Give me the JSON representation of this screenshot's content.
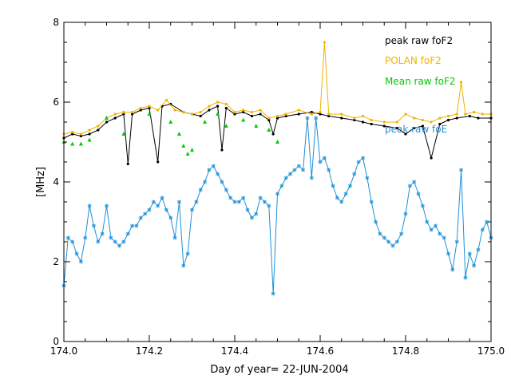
{
  "chart_data": {
    "type": "line",
    "title": "",
    "xlabel": "Day of year= 22-JUN-2004",
    "ylabel": "[MHz]",
    "xlim": [
      174.0,
      175.0
    ],
    "ylim": [
      0,
      8
    ],
    "grid": false,
    "legend_position": "top-right",
    "x_ticks": [
      174.0,
      174.2,
      174.4,
      174.6,
      174.8,
      175.0
    ],
    "x_tick_labels": [
      "174.0",
      "174.2",
      "174.4",
      "174.6",
      "174.8",
      "175.0"
    ],
    "y_ticks": [
      0,
      2,
      4,
      6,
      8
    ],
    "y_tick_labels": [
      "0",
      "2",
      "4",
      "6",
      "8"
    ],
    "series": [
      {
        "name": "peak raw foF2",
        "color": "#000000",
        "marker": "dot",
        "x": [
          174.0,
          174.02,
          174.04,
          174.06,
          174.08,
          174.1,
          174.12,
          174.14,
          174.15,
          174.16,
          174.18,
          174.2,
          174.22,
          174.23,
          174.25,
          174.28,
          174.3,
          174.32,
          174.34,
          174.36,
          174.37,
          174.38,
          174.4,
          174.42,
          174.44,
          174.46,
          174.48,
          174.49,
          174.5,
          174.52,
          174.55,
          174.58,
          174.6,
          174.62,
          174.65,
          174.68,
          174.7,
          174.72,
          174.75,
          174.78,
          174.8,
          174.82,
          174.84,
          174.86,
          174.88,
          174.9,
          174.92,
          174.95,
          174.97,
          175.0
        ],
        "y": [
          5.1,
          5.2,
          5.15,
          5.2,
          5.3,
          5.5,
          5.6,
          5.7,
          4.45,
          5.7,
          5.8,
          5.85,
          4.5,
          5.9,
          5.95,
          5.75,
          5.7,
          5.65,
          5.8,
          5.9,
          4.8,
          5.85,
          5.7,
          5.75,
          5.65,
          5.7,
          5.55,
          5.2,
          5.6,
          5.65,
          5.7,
          5.75,
          5.7,
          5.65,
          5.6,
          5.55,
          5.5,
          5.45,
          5.4,
          5.35,
          5.2,
          5.35,
          5.4,
          4.6,
          5.45,
          5.55,
          5.6,
          5.65,
          5.6,
          5.6
        ]
      },
      {
        "name": "POLAN foF2",
        "color": "#f0b400",
        "marker": "dot",
        "x": [
          174.0,
          174.02,
          174.04,
          174.06,
          174.08,
          174.1,
          174.12,
          174.14,
          174.16,
          174.18,
          174.2,
          174.22,
          174.24,
          174.26,
          174.28,
          174.3,
          174.32,
          174.34,
          174.36,
          174.38,
          174.4,
          174.42,
          174.44,
          174.46,
          174.48,
          174.5,
          174.52,
          174.55,
          174.58,
          174.6,
          174.61,
          174.62,
          174.65,
          174.68,
          174.7,
          174.72,
          174.75,
          174.78,
          174.8,
          174.82,
          174.84,
          174.86,
          174.88,
          174.9,
          174.92,
          174.93,
          174.94,
          174.96,
          174.98,
          175.0
        ],
        "y": [
          5.2,
          5.25,
          5.2,
          5.3,
          5.4,
          5.6,
          5.7,
          5.75,
          5.75,
          5.85,
          5.9,
          5.8,
          6.05,
          5.8,
          5.75,
          5.7,
          5.75,
          5.9,
          6.0,
          5.95,
          5.75,
          5.8,
          5.75,
          5.8,
          5.6,
          5.65,
          5.7,
          5.8,
          5.7,
          5.75,
          7.5,
          5.7,
          5.7,
          5.6,
          5.65,
          5.55,
          5.5,
          5.5,
          5.7,
          5.6,
          5.55,
          5.5,
          5.6,
          5.65,
          5.7,
          6.5,
          5.7,
          5.75,
          5.7,
          5.7
        ]
      },
      {
        "name": "Mean raw foF2",
        "color": "#00cc00",
        "marker": "triangle",
        "x": [
          174.0,
          174.02,
          174.04,
          174.06,
          174.1,
          174.14,
          174.2,
          174.25,
          174.27,
          174.28,
          174.29,
          174.3,
          174.33,
          174.36,
          174.38,
          174.42,
          174.45,
          174.48,
          174.5
        ],
        "y": [
          5.0,
          4.95,
          4.95,
          5.05,
          5.6,
          5.2,
          5.7,
          5.5,
          5.2,
          4.9,
          4.7,
          4.8,
          5.5,
          5.7,
          5.4,
          5.55,
          5.4,
          5.3,
          5.0
        ]
      },
      {
        "name": "peak raw foE",
        "color": "#1e90d8",
        "marker": "star",
        "x": [
          174.0,
          174.01,
          174.02,
          174.03,
          174.04,
          174.05,
          174.06,
          174.07,
          174.08,
          174.09,
          174.1,
          174.11,
          174.12,
          174.13,
          174.14,
          174.15,
          174.16,
          174.17,
          174.18,
          174.19,
          174.2,
          174.21,
          174.22,
          174.23,
          174.24,
          174.25,
          174.26,
          174.27,
          174.28,
          174.29,
          174.3,
          174.31,
          174.32,
          174.33,
          174.34,
          174.35,
          174.36,
          174.37,
          174.38,
          174.39,
          174.4,
          174.41,
          174.42,
          174.43,
          174.44,
          174.45,
          174.46,
          174.47,
          174.48,
          174.49,
          174.5,
          174.51,
          174.52,
          174.53,
          174.54,
          174.55,
          174.56,
          174.57,
          174.58,
          174.59,
          174.6,
          174.61,
          174.62,
          174.63,
          174.64,
          174.65,
          174.66,
          174.67,
          174.68,
          174.69,
          174.7,
          174.71,
          174.72,
          174.73,
          174.74,
          174.75,
          174.76,
          174.77,
          174.78,
          174.79,
          174.8,
          174.81,
          174.82,
          174.83,
          174.84,
          174.85,
          174.86,
          174.87,
          174.88,
          174.89,
          174.9,
          174.91,
          174.92,
          174.93,
          174.94,
          174.95,
          174.96,
          174.97,
          174.98,
          174.99,
          175.0
        ],
        "y": [
          1.4,
          2.6,
          2.5,
          2.2,
          2.0,
          2.6,
          3.4,
          2.9,
          2.5,
          2.7,
          3.4,
          2.6,
          2.5,
          2.4,
          2.5,
          2.7,
          2.9,
          2.9,
          3.1,
          3.2,
          3.3,
          3.5,
          3.4,
          3.6,
          3.3,
          3.1,
          2.6,
          3.5,
          1.9,
          2.2,
          3.3,
          3.5,
          3.8,
          4.0,
          4.3,
          4.4,
          4.2,
          4.0,
          3.8,
          3.6,
          3.5,
          3.5,
          3.6,
          3.3,
          3.1,
          3.2,
          3.6,
          3.5,
          3.4,
          1.2,
          3.7,
          3.9,
          4.1,
          4.2,
          4.3,
          4.4,
          4.3,
          5.6,
          4.1,
          5.6,
          4.5,
          4.6,
          4.3,
          3.9,
          3.6,
          3.5,
          3.7,
          3.9,
          4.2,
          4.5,
          4.6,
          4.1,
          3.5,
          3.0,
          2.7,
          2.6,
          2.5,
          2.4,
          2.5,
          2.7,
          3.2,
          3.9,
          4.0,
          3.7,
          3.4,
          3.0,
          2.8,
          2.9,
          2.7,
          2.6,
          2.2,
          1.8,
          2.5,
          4.3,
          1.6,
          2.2,
          1.9,
          2.3,
          2.8,
          3.0,
          2.6
        ]
      }
    ]
  }
}
